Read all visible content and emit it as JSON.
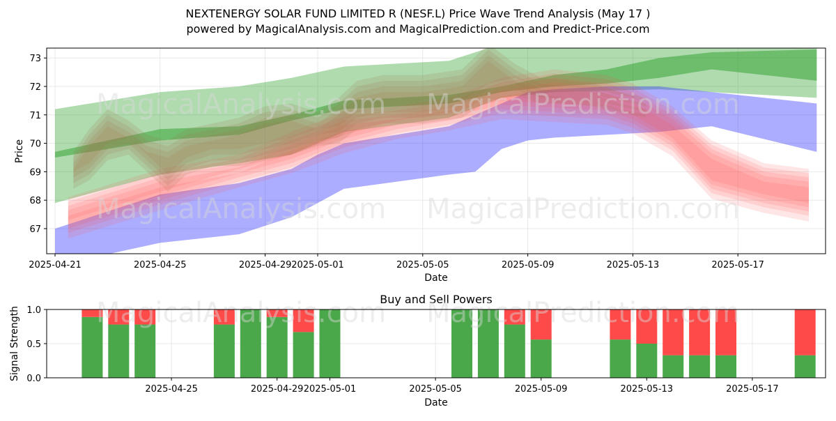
{
  "chart_data": [
    {
      "type": "area",
      "title_line1": "NEXTENERGY SOLAR FUND LIMITED R (NESF.L) Price Wave Trend Analysis (May 17 )",
      "title_line2": "powered by MagicalAnalysis.com and MagicalPrediction.com and Predict-Price.com",
      "xlabel": "Date",
      "ylabel": "Price",
      "xlim": [
        "2025-04-20.7",
        "2025-05-20.8"
      ],
      "ylim": [
        66.15,
        73.35
      ],
      "x_ticks": [
        "2025-04-21",
        "2025-04-25",
        "2025-04-29",
        "2025-05-01",
        "2025-05-05",
        "2025-05-09",
        "2025-05-13",
        "2025-05-17"
      ],
      "y_ticks": [
        67,
        68,
        69,
        70,
        71,
        72,
        73
      ],
      "grid": true,
      "watermarks": [
        "MagicalAnalysis.com",
        "MagicalPrediction.com"
      ],
      "series": [
        {
          "name": "green outer band",
          "color": "#2ca02c",
          "x": [
            0,
            4,
            7,
            9,
            11,
            15,
            17,
            19,
            23,
            29
          ],
          "lower": [
            67.9,
            68.9,
            69.3,
            69.6,
            70.4,
            70.9,
            71.6,
            71.8,
            71.9,
            71.6
          ],
          "upper": [
            71.2,
            71.8,
            72.0,
            72.3,
            72.7,
            72.9,
            73.5,
            73.5,
            73.5,
            73.5
          ]
        },
        {
          "name": "green core band",
          "color": "#2ca02c",
          "x": [
            0,
            4,
            7,
            9,
            11,
            15,
            17,
            19,
            21,
            23,
            25,
            29
          ],
          "lower": [
            69.5,
            70.1,
            70.3,
            70.8,
            71.2,
            71.4,
            71.8,
            72.0,
            72.1,
            72.3,
            72.6,
            72.2
          ],
          "upper": [
            69.7,
            70.5,
            70.6,
            71.0,
            71.5,
            71.7,
            72.0,
            72.4,
            72.6,
            73.0,
            73.2,
            73.3
          ]
        },
        {
          "name": "blue band",
          "color": "#3333ff",
          "x": [
            0,
            4,
            7,
            9,
            10,
            11,
            15,
            16,
            17,
            18,
            19,
            21,
            23,
            25,
            29
          ],
          "lower": [
            65.7,
            66.5,
            66.8,
            67.4,
            67.9,
            68.4,
            68.9,
            69.0,
            69.8,
            70.1,
            70.2,
            70.3,
            70.4,
            70.6,
            69.7
          ],
          "upper": [
            67.0,
            68.2,
            68.6,
            69.1,
            69.6,
            70.0,
            70.6,
            71.0,
            71.4,
            71.8,
            71.9,
            72.0,
            72.0,
            71.8,
            71.4
          ]
        },
        {
          "name": "red forecast band",
          "color": "#ff4d4d",
          "x": [
            0.5,
            4,
            7,
            9,
            11,
            13,
            15,
            17,
            19,
            21,
            22,
            23.5,
            25,
            27,
            28.7
          ],
          "lower": [
            67.0,
            68.0,
            68.8,
            69.3,
            70.0,
            70.5,
            70.8,
            71.2,
            71.1,
            71.0,
            70.7,
            69.9,
            68.4,
            67.9,
            67.6
          ],
          "upper": [
            67.8,
            68.8,
            69.3,
            70.1,
            70.8,
            71.0,
            71.3,
            72.0,
            72.3,
            72.1,
            71.8,
            71.0,
            69.8,
            69.0,
            68.8
          ]
        },
        {
          "name": "brown wave band",
          "color": "#a0704a",
          "x": [
            0.7,
            1.3,
            2,
            2.8,
            3.5,
            4.3,
            5,
            6,
            7,
            8,
            9,
            10,
            10.8,
            11.5,
            12.5,
            14,
            15.5,
            16.5,
            17.5,
            18.5,
            19.5,
            20.5,
            21.5,
            22.5
          ],
          "lower": [
            68.7,
            69.0,
            69.7,
            69.9,
            69.3,
            68.6,
            69.2,
            69.5,
            69.5,
            69.7,
            69.9,
            70.2,
            70.3,
            70.8,
            71.0,
            71.0,
            71.2,
            71.8,
            72.0,
            71.7,
            71.7,
            71.6,
            71.4,
            71.2
          ],
          "upper": [
            69.4,
            70.2,
            70.9,
            70.5,
            70.0,
            69.8,
            70.2,
            70.4,
            70.6,
            71.0,
            71.1,
            70.8,
            71.3,
            71.9,
            72.1,
            72.1,
            72.3,
            73.2,
            72.5,
            72.0,
            71.9,
            71.8,
            71.5,
            71.3
          ]
        }
      ]
    },
    {
      "type": "bar",
      "title": "Buy and Sell Powers",
      "xlabel": "Date",
      "ylabel": "Signal Strength",
      "ylim": [
        0,
        1.0
      ],
      "y_ticks": [
        "0.0",
        "0.5",
        "1.0"
      ],
      "x_ticks": [
        "2025-04-25",
        "2025-04-29",
        "2025-05-01",
        "2025-05-05",
        "2025-05-09",
        "2025-05-13",
        "2025-05-17"
      ],
      "colors": {
        "buy": "#4aa74a",
        "sell": "#ff4a4a"
      },
      "bars": [
        {
          "x": 1,
          "buy": 0.89,
          "sell": 0.11
        },
        {
          "x": 2,
          "buy": 0.78,
          "sell": 0.22
        },
        {
          "x": 3,
          "buy": 0.78,
          "sell": 0.22
        },
        {
          "x": 6,
          "buy": 0.78,
          "sell": 0.22
        },
        {
          "x": 7,
          "buy": 1.0,
          "sell": 0.0
        },
        {
          "x": 8,
          "buy": 0.89,
          "sell": 0.11
        },
        {
          "x": 9,
          "buy": 0.67,
          "sell": 0.33
        },
        {
          "x": 10,
          "buy": 1.0,
          "sell": 0.0
        },
        {
          "x": 15,
          "buy": 1.0,
          "sell": 0.0
        },
        {
          "x": 16,
          "buy": 1.0,
          "sell": 0.0
        },
        {
          "x": 17,
          "buy": 0.78,
          "sell": 0.22
        },
        {
          "x": 18,
          "buy": 0.56,
          "sell": 0.44
        },
        {
          "x": 21,
          "buy": 0.56,
          "sell": 0.44
        },
        {
          "x": 22,
          "buy": 0.5,
          "sell": 0.5
        },
        {
          "x": 23,
          "buy": 0.33,
          "sell": 0.67
        },
        {
          "x": 24,
          "buy": 0.33,
          "sell": 0.67
        },
        {
          "x": 25,
          "buy": 0.33,
          "sell": 0.67
        },
        {
          "x": 28,
          "buy": 0.33,
          "sell": 0.67
        }
      ]
    }
  ]
}
